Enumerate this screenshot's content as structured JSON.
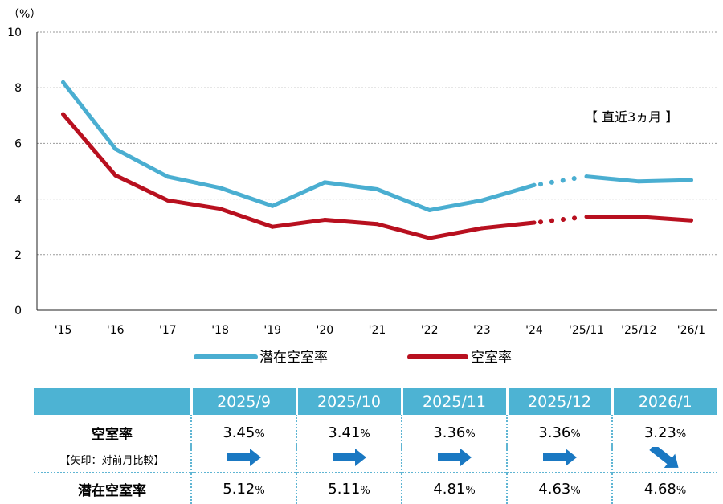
{
  "chart_data": {
    "type": "line",
    "y_unit_label": "（%）",
    "ylim": [
      0,
      10
    ],
    "yticks": [
      "0",
      "2",
      "4",
      "6",
      "8",
      "10"
    ],
    "categories": [
      "'15",
      "'16",
      "'17",
      "'18",
      "'19",
      "'20",
      "'21",
      "'22",
      "'23",
      "'24",
      "'25/11",
      "'25/12",
      "'26/1"
    ],
    "series": [
      {
        "name": "潜在空室率",
        "color": "#4aaed1",
        "values": [
          8.2,
          5.8,
          4.8,
          4.4,
          3.75,
          4.6,
          4.35,
          3.6,
          3.95,
          4.5,
          4.81,
          4.63,
          4.68
        ]
      },
      {
        "name": "空室率",
        "color": "#b8101f",
        "values": [
          7.05,
          4.85,
          3.95,
          3.65,
          3.0,
          3.25,
          3.1,
          2.6,
          2.95,
          3.15,
          3.36,
          3.36,
          3.23
        ]
      }
    ],
    "grid": true,
    "annotation": "【 直近3ヵ月 】"
  },
  "summary_table": {
    "columns": [
      "2025/9",
      "2025/10",
      "2025/11",
      "2025/12",
      "2026/1"
    ],
    "vacancy_label": "空室率",
    "vacancy_values": [
      "3.45",
      "3.41",
      "3.36",
      "3.36",
      "3.23"
    ],
    "arrow_label": "【矢印：対前月比較】",
    "arrows": [
      "right",
      "right",
      "right",
      "right",
      "down-right"
    ],
    "potential_label": "潜在空室率",
    "potential_values": [
      "5.12",
      "5.11",
      "4.81",
      "4.63",
      "4.68"
    ],
    "unit": "%",
    "header_color": "#4db3d3",
    "arrow_color": "#1a78c2"
  }
}
